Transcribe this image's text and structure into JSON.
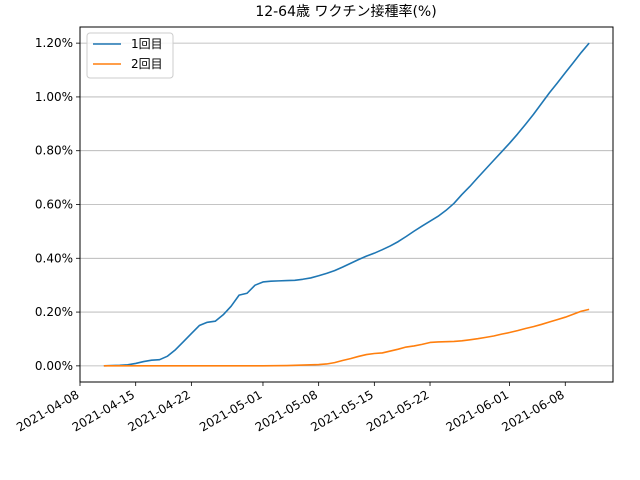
{
  "chart_data": {
    "type": "line",
    "title": "12-64歳 ワクチン接種率(%)",
    "xlabel": "",
    "ylabel": "",
    "xlim": [
      "2021-04-08",
      "2021-06-14"
    ],
    "ylim": [
      -0.06,
      1.26
    ],
    "grid": "y",
    "legend": "top-left",
    "x_ticks": [
      "2021-04-08",
      "2021-04-15",
      "2021-04-22",
      "2021-05-01",
      "2021-05-08",
      "2021-05-15",
      "2021-05-22",
      "2021-06-01",
      "2021-06-08"
    ],
    "y_ticks": [
      0.0,
      0.2,
      0.4,
      0.6,
      0.8,
      1.0,
      1.2
    ],
    "y_tick_labels": [
      "0.00%",
      "0.20%",
      "0.40%",
      "0.60%",
      "0.80%",
      "1.00%",
      "1.20%"
    ],
    "series": [
      {
        "name": "1回目",
        "color": "#1f77b4",
        "points": [
          [
            "2021-04-11",
            0.0
          ],
          [
            "2021-04-12",
            0.001
          ],
          [
            "2021-04-13",
            0.002
          ],
          [
            "2021-04-14",
            0.004
          ],
          [
            "2021-04-15",
            0.009
          ],
          [
            "2021-04-16",
            0.016
          ],
          [
            "2021-04-17",
            0.021
          ],
          [
            "2021-04-18",
            0.023
          ],
          [
            "2021-04-19",
            0.036
          ],
          [
            "2021-04-20",
            0.06
          ],
          [
            "2021-04-21",
            0.09
          ],
          [
            "2021-04-22",
            0.12
          ],
          [
            "2021-04-23",
            0.15
          ],
          [
            "2021-04-24",
            0.162
          ],
          [
            "2021-04-25",
            0.166
          ],
          [
            "2021-04-26",
            0.19
          ],
          [
            "2021-04-27",
            0.222
          ],
          [
            "2021-04-28",
            0.263
          ],
          [
            "2021-04-29",
            0.27
          ],
          [
            "2021-04-30",
            0.3
          ],
          [
            "2021-05-01",
            0.312
          ],
          [
            "2021-05-02",
            0.315
          ],
          [
            "2021-05-03",
            0.316
          ],
          [
            "2021-05-04",
            0.317
          ],
          [
            "2021-05-05",
            0.318
          ],
          [
            "2021-05-06",
            0.322
          ],
          [
            "2021-05-07",
            0.327
          ],
          [
            "2021-05-08",
            0.335
          ],
          [
            "2021-05-09",
            0.344
          ],
          [
            "2021-05-10",
            0.354
          ],
          [
            "2021-05-11",
            0.367
          ],
          [
            "2021-05-12",
            0.381
          ],
          [
            "2021-05-13",
            0.395
          ],
          [
            "2021-05-14",
            0.408
          ],
          [
            "2021-05-15",
            0.419
          ],
          [
            "2021-05-16",
            0.432
          ],
          [
            "2021-05-17",
            0.446
          ],
          [
            "2021-05-18",
            0.462
          ],
          [
            "2021-05-19",
            0.481
          ],
          [
            "2021-05-20",
            0.501
          ],
          [
            "2021-05-21",
            0.52
          ],
          [
            "2021-05-22",
            0.538
          ],
          [
            "2021-05-23",
            0.556
          ],
          [
            "2021-05-24",
            0.578
          ],
          [
            "2021-05-25",
            0.604
          ],
          [
            "2021-05-26",
            0.637
          ],
          [
            "2021-05-27",
            0.667
          ],
          [
            "2021-05-28",
            0.7
          ],
          [
            "2021-05-29",
            0.732
          ],
          [
            "2021-05-30",
            0.764
          ],
          [
            "2021-05-31",
            0.796
          ],
          [
            "2021-06-01",
            0.828
          ],
          [
            "2021-06-02",
            0.862
          ],
          [
            "2021-06-03",
            0.898
          ],
          [
            "2021-06-04",
            0.935
          ],
          [
            "2021-06-05",
            0.975
          ],
          [
            "2021-06-06",
            1.015
          ],
          [
            "2021-06-07",
            1.052
          ],
          [
            "2021-06-08",
            1.09
          ],
          [
            "2021-06-09",
            1.127
          ],
          [
            "2021-06-10",
            1.165
          ],
          [
            "2021-06-11",
            1.2
          ]
        ]
      },
      {
        "name": "2回目",
        "color": "#ff7f0e",
        "points": [
          [
            "2021-04-11",
            0.0
          ],
          [
            "2021-04-15",
            0.0
          ],
          [
            "2021-04-22",
            0.0
          ],
          [
            "2021-05-01",
            0.0
          ],
          [
            "2021-05-04",
            0.001
          ],
          [
            "2021-05-06",
            0.003
          ],
          [
            "2021-05-08",
            0.005
          ],
          [
            "2021-05-09",
            0.007
          ],
          [
            "2021-05-10",
            0.012
          ],
          [
            "2021-05-11",
            0.02
          ],
          [
            "2021-05-12",
            0.027
          ],
          [
            "2021-05-13",
            0.035
          ],
          [
            "2021-05-14",
            0.042
          ],
          [
            "2021-05-15",
            0.046
          ],
          [
            "2021-05-16",
            0.048
          ],
          [
            "2021-05-17",
            0.055
          ],
          [
            "2021-05-18",
            0.062
          ],
          [
            "2021-05-19",
            0.07
          ],
          [
            "2021-05-20",
            0.074
          ],
          [
            "2021-05-21",
            0.08
          ],
          [
            "2021-05-22",
            0.087
          ],
          [
            "2021-05-23",
            0.089
          ],
          [
            "2021-05-24",
            0.09
          ],
          [
            "2021-05-25",
            0.091
          ],
          [
            "2021-05-26",
            0.093
          ],
          [
            "2021-05-27",
            0.097
          ],
          [
            "2021-05-28",
            0.101
          ],
          [
            "2021-05-29",
            0.106
          ],
          [
            "2021-05-30",
            0.111
          ],
          [
            "2021-05-31",
            0.118
          ],
          [
            "2021-06-01",
            0.124
          ],
          [
            "2021-06-02",
            0.131
          ],
          [
            "2021-06-03",
            0.139
          ],
          [
            "2021-06-04",
            0.146
          ],
          [
            "2021-06-05",
            0.154
          ],
          [
            "2021-06-06",
            0.163
          ],
          [
            "2021-06-07",
            0.172
          ],
          [
            "2021-06-08",
            0.181
          ],
          [
            "2021-06-09",
            0.192
          ],
          [
            "2021-06-10",
            0.203
          ],
          [
            "2021-06-11",
            0.21
          ]
        ]
      }
    ]
  }
}
